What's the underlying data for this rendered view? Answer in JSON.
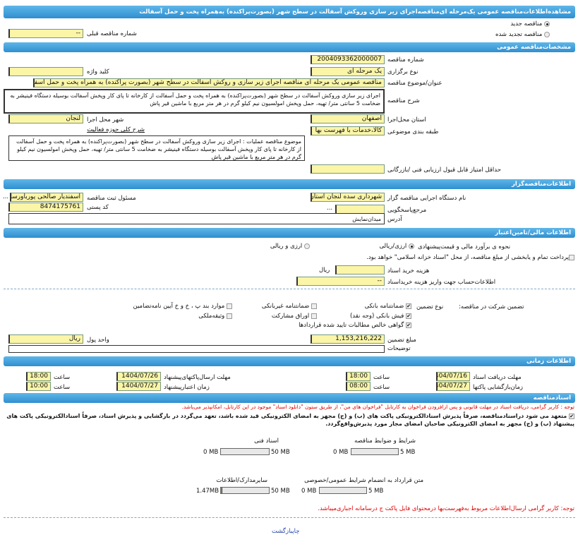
{
  "title": "مشاهده‌اطلاعات‌مناقصه عمومی یک‌مرحله ای‌مناقصه‌اجرای زیر سازی وروکش آسفالت در سطح شهر (بصورت‌پراکنده) به‌همراه پخت و حمل آسفالت",
  "tender_type": {
    "new": "مناقصه جدید",
    "renewed": "مناقصه تجدید شده",
    "selected": "new",
    "prev_number_label": "شماره مناقصه قبلی",
    "prev_number": "--"
  },
  "general": {
    "header": "مشخصات‌مناقصه عمومی",
    "number_label": "شماره مناقصه",
    "number": "2004093362000007",
    "holding_label": "نوع برگزاری",
    "holding": "یک مرحله ای",
    "keyword_label": "کلید واژه",
    "keyword": "",
    "subject_label": "عنوان/موضوع مناقصه",
    "subject": "مناقصه عمومی یک مرحله ای مناقصه اجرای زیر سازی و روکش آسفالت در سطح شهر (بصورت پراکنده) به همراه پخت و حمل آسفالت",
    "desc_label": "شرح مناقصه",
    "desc": "اجرای زیر سازی وروکش آسفالت در سطح شهر (بصورت‌پراکنده) به همراه پخت و حمل آسفالت از کارخانه تا پای کار وپخش آسفالت بوسیله دستگاه فینیشر به ضخامت 5 سانتی متر/ تهیه، حمل وپخش امولسیون نیم کیلو گرم در هر متر مربع با ماشین قیر پاش",
    "province_label": "استان محل‌اجرا",
    "province": "اصفهان",
    "city_label": "شهر محل اجرا",
    "city": "لنجان",
    "category_label": "طبقه بندی موضوعی",
    "category": "کالا،خدمات با فهرست بها",
    "activity_label": "شرح کلی حوزه فعالیت",
    "activity": "موضوع مناقصه عملیات : اجرای زیر سازی وروکش آسفالت در سطح شهر (بصورت‌پراکنده) به همراه پخت و حمل آسفالت از کارخانه تا پای کار وپخش آسفالت بوسیله دستگاه فینیشر به ضخامت 5 سانتی متر/ تهیه، حمل وپخش امولسیون نیم کیلو گرم در هر متر مربع با ماشین قیر پاش",
    "min_score_label": "حداقل امتیاز قابل قبول ارزیابی فنی /بازرگانی",
    "min_score": ""
  },
  "organizer": {
    "header": "اطلاعات‌مناقصه‌گزار",
    "org_label": "نام دستگاه اجرایی مناقصه گزار",
    "org": "شهرداری سده لنجان استان",
    "resp_label": "مسئول ثبت مناقصه",
    "resp": "اسفندیار صالحی پورباورسا",
    "more": "...",
    "ref_label": "مرجع‌پاسخگویی",
    "ref": "...",
    "postal_label": "کد پستی",
    "postal": "8474175761",
    "address_label": "آدرس",
    "address": "میدان‌نمایش"
  },
  "finance": {
    "header": "اطلاعات مالی/تامین‌اعتبار",
    "estimate_label": "نحوه ی برآورد مالی و قیمت‌پیشنهادی",
    "opt1": "ارزی/ریالی",
    "opt2": "ارزی و ریالی",
    "selected": "opt1",
    "treasury": "پرداخت تمام و یابخشی از مبلغ مناقصه، از محل \"اسناد خزانه اسلامی\" خواهد بود.",
    "doc_cost_label": "هزینه خرید اسناد",
    "doc_cost": "",
    "doc_cost_unit": "ریال",
    "account_label": "اطلاعات‌حساب جهت واریز هزینه خریداسناد",
    "account": "--",
    "guarantee_label": "تضمین شرکت در مناقصه:",
    "guarantee_type_label": "نوع تضمین",
    "guarantees": [
      {
        "label": "ضمانتنامه بانکی",
        "checked": true
      },
      {
        "label": "ضمانتنامه غیربانکی",
        "checked": false
      },
      {
        "label": "موارد بند پ ، خ و خ آیین نامه‌تضامین",
        "checked": false
      },
      {
        "label": "فیش بانکی (وجه نقد)",
        "checked": true
      },
      {
        "label": "اوراق مشارکت",
        "checked": false
      },
      {
        "label": "وثیقه‌ملکی",
        "checked": false
      },
      {
        "label": "گواهی خالص مطالبات تایید شده قراردادها",
        "checked": true
      }
    ],
    "amount_label": "مبلغ تضمین",
    "amount": "1,153,216,222",
    "currency_label": "واحد پول",
    "currency": "ریال",
    "notes_label": "توضیحات",
    "notes": ""
  },
  "timing": {
    "header": "اطلاعات زمانی",
    "receive_label": "مهلت دریافت اسناد",
    "receive_date": "1404/07/16",
    "receive_time": "18:00",
    "send_label": "مهلت ارسال‌پاکتهای‌پیشنهاد",
    "send_date": "1404/07/26",
    "send_time": "18:00",
    "open_label": "زمان‌بازگشایی پاکتها",
    "open_date": "1404/07/27",
    "open_time": "08:00",
    "valid_label": "زمان اعتبارپیشنهاد",
    "valid_date": "1404/07/27",
    "valid_time": "10:00",
    "time_label": "ساعت"
  },
  "docs": {
    "header": "اسنادمناقصه",
    "note1": "توجه : کاربر گرامی، دریافت اسناد در مهلت قانونی و پس ازافزودن فراخوان به کارتابل \"فراخوان های من\"، از طریق ستون \"دانلود اسناد\" موجود در این کارتابل، امکانپذیر می‌باشد.",
    "commit": "متعهد می شود دراسنادمناقصه، صرفاً پذیرش اسنادالکترونیکی پاکت های (ب) و (ج) مجهز به امضای الکترونیکی قید شده باشد، تعهد می‌گردد در بازگشایی و پذیرش اسناد، صرفاً اسنادالکترونیکی پاکت های پیشنهاد (ب) و (ج) مجهز به امضای الکترونیکی صاحبان امضای مجاز مورد پذیرش‌واقع‌گردد.",
    "files": [
      {
        "label": "شرایط و ضوابط مناقصه",
        "used": "0 MB",
        "max": "5 MB",
        "fraction": 0
      },
      {
        "label": "اسناد فنی",
        "used": "0 MB",
        "max": "50 MB",
        "fraction": 0
      },
      {
        "label": "متن قرارداد به انضمام شرایط عمومی/خصوصی",
        "used": "0 MB",
        "max": "5 MB",
        "fraction": 0
      },
      {
        "label": "سایرمدارک/اطلاعات",
        "used": "1.47MB",
        "max": "50 MB",
        "fraction": 0.03
      }
    ],
    "note2": "توجه: کاربر گرامی ارسال‌اطلاعات مربوط به‌فهرست‌بها درمحتوای فایل پاکت ج درسامانه اجباری‌میباشد."
  },
  "footer": {
    "print": "چاپ",
    "back": "بازگشت"
  }
}
